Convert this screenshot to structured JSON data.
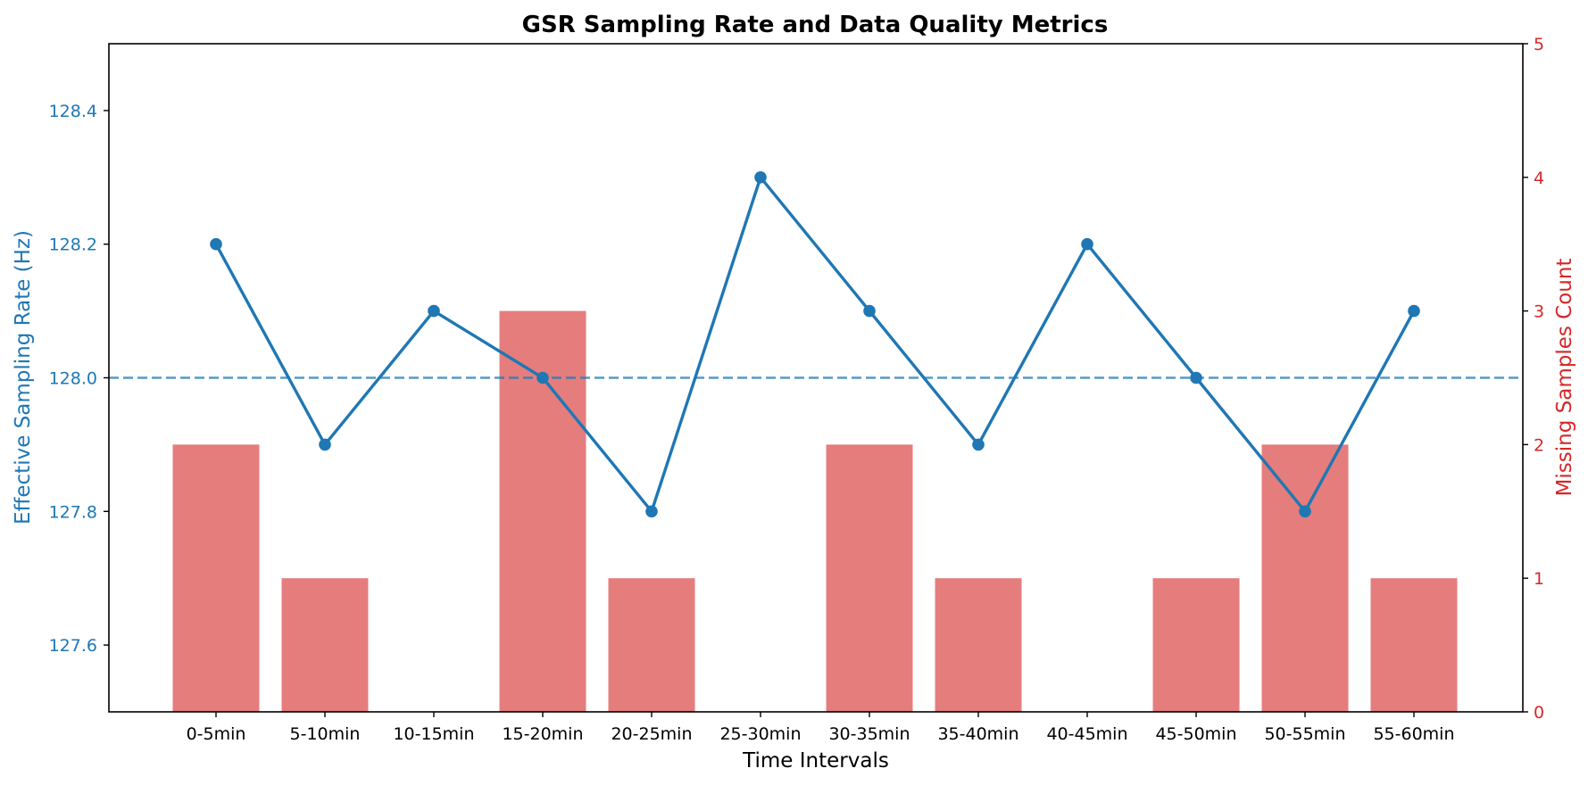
{
  "chart_data": {
    "type": "bar+line",
    "title": "GSR Sampling Rate and Data Quality Metrics",
    "xlabel": "Time Intervals",
    "categories": [
      "0-5min",
      "5-10min",
      "10-15min",
      "15-20min",
      "20-25min",
      "25-30min",
      "30-35min",
      "35-40min",
      "40-45min",
      "45-50min",
      "50-55min",
      "55-60min"
    ],
    "left_axis": {
      "label": "Effective Sampling Rate (Hz)",
      "ylim": [
        127.5,
        128.5
      ],
      "ticks": [
        "127.6",
        "127.8",
        "128.0",
        "128.2",
        "128.4"
      ],
      "color": "#1f77b4"
    },
    "right_axis": {
      "label": "Missing Samples Count",
      "ylim": [
        0,
        5
      ],
      "ticks": [
        "0",
        "1",
        "2",
        "3",
        "4",
        "5"
      ],
      "color": "#d62728"
    },
    "series": [
      {
        "type": "line",
        "axis": "left",
        "values": [
          128.2,
          127.9,
          128.1,
          128.0,
          127.8,
          128.3,
          128.1,
          127.9,
          128.2,
          128.0,
          127.8,
          128.1
        ],
        "color": "#1f77b4"
      },
      {
        "type": "bar",
        "axis": "right",
        "values": [
          2,
          1,
          0,
          3,
          1,
          0,
          2,
          1,
          0,
          1,
          2,
          1
        ],
        "color": "#e06666"
      }
    ],
    "reference_line": {
      "axis": "left",
      "value": 128.0,
      "style": "dashed",
      "color": "#1f77b4"
    },
    "grid": false,
    "legend": "none"
  }
}
